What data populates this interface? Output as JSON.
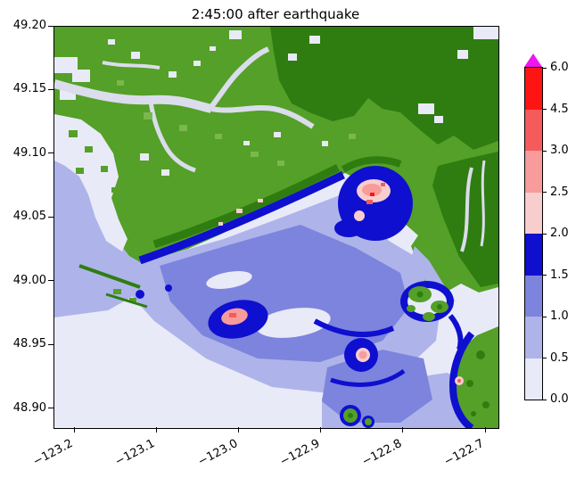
{
  "chart_data": {
    "type": "heatmap",
    "title": "2:45:00 after earthquake",
    "x_ticks": [
      -123.2,
      -123.1,
      -123.0,
      -122.9,
      -122.8,
      -122.7
    ],
    "x_tick_labels": [
      "−123.2",
      "−123.1",
      "−123.0",
      "−122.9",
      "−122.8",
      "−122.7"
    ],
    "y_ticks": [
      49.2,
      49.15,
      49.1,
      49.05,
      49.0,
      48.95,
      48.9
    ],
    "y_tick_labels": [
      "49.20",
      "49.15",
      "49.10",
      "49.05",
      "49.00",
      "48.95",
      "48.90"
    ],
    "xlim": [
      -123.225,
      -122.685
    ],
    "ylim": [
      48.885,
      49.2
    ],
    "grid": false,
    "legend_position": "right-colorbar",
    "colorbar": {
      "levels": [
        0.0,
        0.5,
        1.0,
        1.5,
        2.0,
        2.5,
        3.0,
        4.5,
        6.0
      ],
      "tick_labels": [
        "0.0",
        "0.5",
        "1.0",
        "1.5",
        "2.0",
        "2.5",
        "3.0",
        "4.5",
        "6.0"
      ],
      "segment_colors": [
        "#e9eaf8",
        "#aeb4ea",
        "#7d84dd",
        "#0f0fd0",
        "#f8cdcd",
        "#f79b9b",
        "#f55b5b",
        "#ff1414"
      ],
      "over_color": "#ee15ee",
      "extend": "max-triangle"
    }
  },
  "colors": {
    "figure_bg": "#ffffff",
    "land": "#54a028",
    "land_dark": "#2f7d10",
    "land_noise": "#7ab84e",
    "river": "#dbdcec",
    "w0": "#e9eaf8",
    "w1": "#aeb4ea",
    "w2": "#7d84dd",
    "w3": "#0f0fd0",
    "p1": "#f8cdcd",
    "p2": "#f79b9b",
    "r1": "#f55b5b",
    "r2": "#ff1414",
    "over": "#ee15ee"
  }
}
